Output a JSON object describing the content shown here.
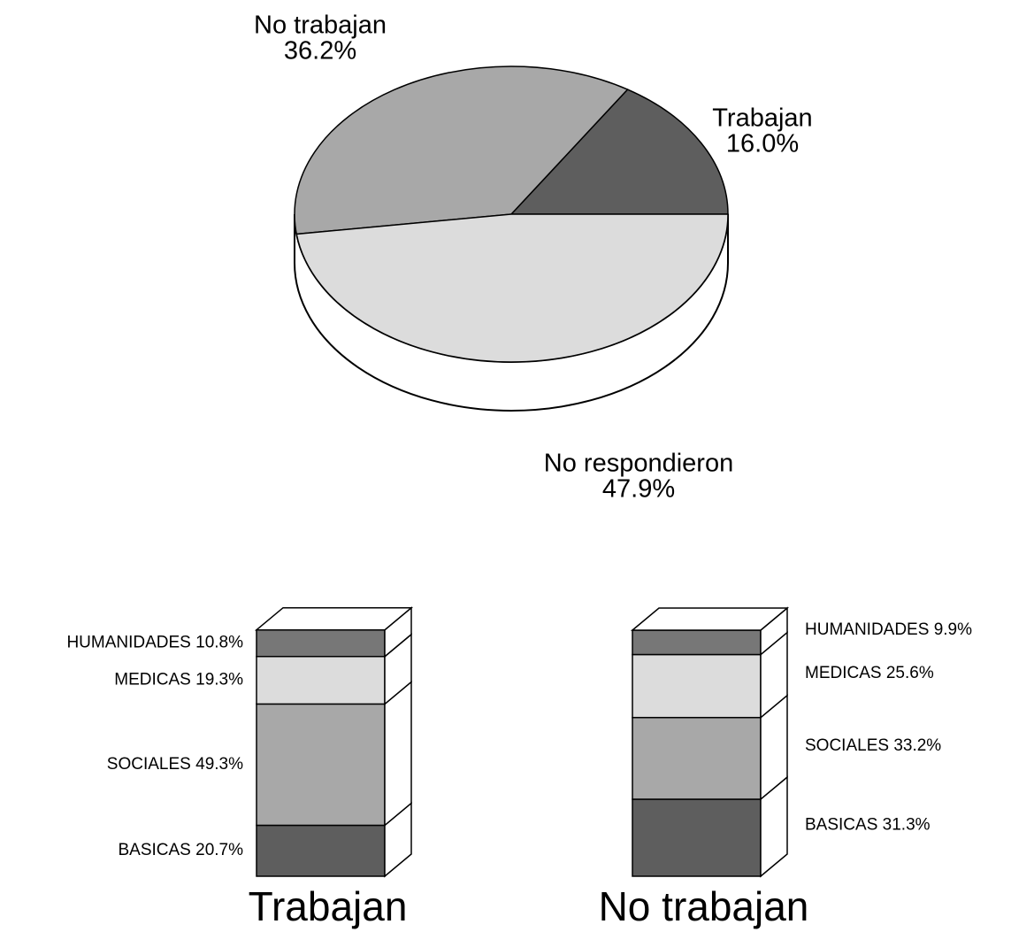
{
  "chart_data": [
    {
      "type": "pie",
      "labels": [
        "Trabajan",
        "No trabajan",
        "No respondieron"
      ],
      "values": [
        16.0,
        36.2,
        47.9
      ],
      "value_labels": [
        "16.0%",
        "36.2%",
        "47.9%"
      ],
      "colors": [
        "#5e5e5e",
        "#a8a8a8",
        "#dcdcdc"
      ]
    },
    {
      "type": "bar",
      "stacked": true,
      "categories": [
        "Trabajan"
      ],
      "series": [
        {
          "name": "BASICAS",
          "color": "#5e5e5e",
          "values": [
            20.7
          ],
          "value_labels": [
            "20.7%"
          ]
        },
        {
          "name": "SOCIALES",
          "color": "#a8a8a8",
          "values": [
            49.3
          ],
          "value_labels": [
            "49.3%"
          ]
        },
        {
          "name": "MEDICAS",
          "color": "#dcdcdc",
          "values": [
            19.3
          ],
          "value_labels": [
            "19.3%"
          ]
        },
        {
          "name": "HUMANIDADES",
          "color": "#777777",
          "values": [
            10.8
          ],
          "value_labels": [
            "10.8%"
          ]
        }
      ]
    },
    {
      "type": "bar",
      "stacked": true,
      "categories": [
        "No trabajan"
      ],
      "series": [
        {
          "name": "BASICAS",
          "color": "#5e5e5e",
          "values": [
            31.3
          ],
          "value_labels": [
            "31.3%"
          ]
        },
        {
          "name": "SOCIALES",
          "color": "#a8a8a8",
          "values": [
            33.2
          ],
          "value_labels": [
            "33.2%"
          ]
        },
        {
          "name": "MEDICAS",
          "color": "#dcdcdc",
          "values": [
            25.6
          ],
          "value_labels": [
            "25.6%"
          ]
        },
        {
          "name": "HUMANIDADES",
          "color": "#777777",
          "values": [
            9.9
          ],
          "value_labels": [
            "9.9%"
          ]
        }
      ]
    }
  ]
}
